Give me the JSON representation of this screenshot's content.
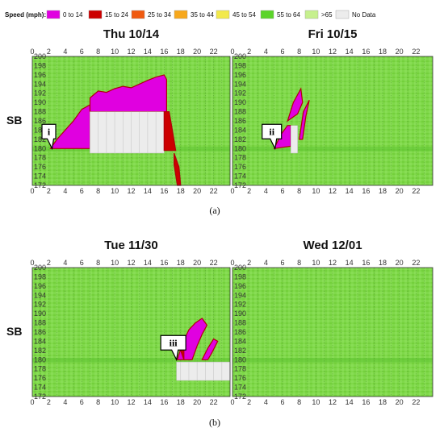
{
  "legend": {
    "title": "Speed (mph):",
    "entries": [
      {
        "label": "0 to 14",
        "color": "#e000e0"
      },
      {
        "label": "15 to 24",
        "color": "#cc0000"
      },
      {
        "label": "25 to 34",
        "color": "#f05a10"
      },
      {
        "label": "35 to 44",
        "color": "#f7a81c"
      },
      {
        "label": "45 to 54",
        "color": "#f2e94b"
      },
      {
        "label": "55 to 64",
        "color": "#5bd42a"
      },
      {
        "label": ">65",
        "color": "#c6f08e"
      },
      {
        "label": "No Data",
        "color": "#ececec"
      }
    ]
  },
  "chart_data": [
    {
      "type": "heatmap",
      "panel_label": "(a)",
      "title": "Thu 10/14",
      "ylabel": "SB",
      "xlim": [
        0,
        24
      ],
      "ylim": [
        172,
        200
      ],
      "x_ticks": [
        0,
        2,
        4,
        6,
        8,
        10,
        12,
        14,
        16,
        18,
        20,
        22
      ],
      "y_ticks": [
        172,
        174,
        176,
        178,
        180,
        182,
        184,
        186,
        188,
        190,
        192,
        194,
        196,
        198,
        200
      ],
      "callout": {
        "label": "i",
        "time": 2.4,
        "milepost": 180
      },
      "regions": [
        {
          "speed": "0 to 14",
          "polygon": [
            [
              2.2,
              180
            ],
            [
              3,
              182
            ],
            [
              4,
              184
            ],
            [
              5,
              186
            ],
            [
              6,
              188.5
            ],
            [
              7,
              189.5
            ],
            [
              7,
              180
            ]
          ]
        },
        {
          "speed": "0 to 14",
          "polygon": [
            [
              7,
              188
            ],
            [
              7,
              191
            ],
            [
              8,
              192.5
            ],
            [
              9,
              192.2
            ],
            [
              10,
              193
            ],
            [
              11,
              193.5
            ],
            [
              12,
              193.2
            ],
            [
              13,
              194
            ],
            [
              14,
              194.8
            ],
            [
              15,
              195.5
            ],
            [
              16,
              196
            ],
            [
              16.3,
              195
            ],
            [
              16.3,
              188
            ]
          ]
        },
        {
          "speed": "No Data",
          "polygon": [
            [
              7,
              179
            ],
            [
              16,
              179
            ],
            [
              16,
              188
            ],
            [
              7,
              188
            ]
          ]
        },
        {
          "speed": "15 to 24",
          "polygon": [
            [
              16,
              188
            ],
            [
              16.6,
              188
            ],
            [
              17,
              184
            ],
            [
              17.4,
              179.6
            ],
            [
              16,
              179.6
            ]
          ]
        },
        {
          "speed": "15 to 24",
          "polygon": [
            [
              17.2,
              179
            ],
            [
              17.8,
              176
            ],
            [
              18,
              172
            ],
            [
              17.6,
              172
            ],
            [
              17.2,
              176.5
            ]
          ]
        }
      ]
    },
    {
      "type": "heatmap",
      "title": "Fri 10/15",
      "xlim": [
        0,
        24
      ],
      "ylim": [
        172,
        200
      ],
      "x_ticks": [
        0,
        2,
        4,
        6,
        8,
        10,
        12,
        14,
        16,
        18,
        20,
        22
      ],
      "callout": {
        "label": "ii",
        "time": 5.1,
        "milepost": 180
      },
      "regions": [
        {
          "speed": "0 to 14",
          "polygon": [
            [
              5,
              180
            ],
            [
              5.8,
              183
            ],
            [
              6.6,
              185
            ],
            [
              7,
              185
            ],
            [
              7,
              180.5
            ]
          ]
        },
        {
          "speed": "0 to 14",
          "polygon": [
            [
              6.6,
              186
            ],
            [
              7.3,
              190
            ],
            [
              8.2,
              193
            ],
            [
              8.4,
              190
            ],
            [
              7.8,
              187.5
            ]
          ]
        },
        {
          "speed": "0 to 14",
          "polygon": [
            [
              8,
              182
            ],
            [
              8.5,
              188
            ],
            [
              9.2,
              190.5
            ],
            [
              8.8,
              187
            ],
            [
              8.4,
              182
            ]
          ]
        },
        {
          "speed": "No Data",
          "polygon": [
            [
              7,
              179
            ],
            [
              7.8,
              179
            ],
            [
              7.8,
              185
            ],
            [
              7,
              185
            ]
          ]
        }
      ]
    },
    {
      "type": "heatmap",
      "panel_label": "(b)",
      "title": "Tue 11/30",
      "ylabel": "SB",
      "xlim": [
        0,
        24
      ],
      "ylim": [
        172,
        200
      ],
      "x_ticks": [
        0,
        2,
        4,
        6,
        8,
        10,
        12,
        14,
        16,
        18,
        20,
        22
      ],
      "y_ticks": [
        172,
        174,
        176,
        178,
        180,
        182,
        184,
        186,
        188,
        190,
        192,
        194,
        196,
        198,
        200
      ],
      "callout": {
        "label": "iii",
        "time": 17.5,
        "milepost": 180
      },
      "regions": [
        {
          "speed": "No Data",
          "polygon": [
            [
              17.5,
              175.5
            ],
            [
              24,
              175.5
            ],
            [
              24,
              179.5
            ],
            [
              17.5,
              179.5
            ]
          ]
        },
        {
          "speed": "0 to 14",
          "polygon": [
            [
              17.6,
              180
            ],
            [
              18.2,
              183.5
            ],
            [
              19,
              186.5
            ],
            [
              19.8,
              188
            ],
            [
              20.6,
              189
            ],
            [
              21.2,
              187.5
            ],
            [
              20.6,
              185.5
            ],
            [
              20,
              183
            ],
            [
              19.4,
              180
            ]
          ]
        },
        {
          "speed": "0 to 14",
          "polygon": [
            [
              20.6,
              180
            ],
            [
              21.3,
              182.5
            ],
            [
              22,
              184.5
            ],
            [
              22.5,
              184
            ],
            [
              21.8,
              181.5
            ],
            [
              21.3,
              180
            ]
          ]
        },
        {
          "speed": "15 to 24",
          "polygon": [
            [
              18,
              182
            ],
            [
              18.4,
              184
            ],
            [
              18.4,
              180
            ]
          ]
        }
      ]
    },
    {
      "type": "heatmap",
      "title": "Wed 12/01",
      "xlim": [
        0,
        24
      ],
      "ylim": [
        172,
        200
      ],
      "x_ticks": [
        0,
        2,
        4,
        6,
        8,
        10,
        12,
        14,
        16,
        18,
        20,
        22
      ],
      "regions": []
    }
  ],
  "captions": [
    "(a)",
    "(b)"
  ]
}
